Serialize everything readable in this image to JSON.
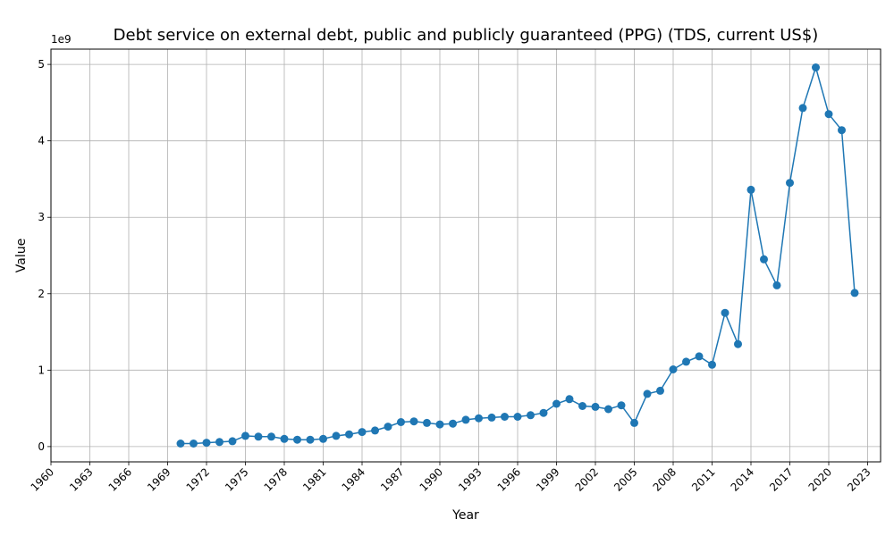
{
  "chart_data": {
    "type": "line",
    "title": "Debt service on external debt, public and publicly guaranteed (PPG) (TDS, current US$)",
    "xlabel": "Year",
    "ylabel": "Value",
    "y_scale_label": "1e9",
    "xlim": [
      1960,
      2024
    ],
    "ylim": [
      -200000000.0,
      5200000000.0
    ],
    "x_ticks": [
      1960,
      1963,
      1966,
      1969,
      1972,
      1975,
      1978,
      1981,
      1984,
      1987,
      1990,
      1993,
      1996,
      1999,
      2002,
      2005,
      2008,
      2011,
      2014,
      2017,
      2020,
      2023
    ],
    "y_ticks": [
      0,
      1000000000,
      2000000000,
      3000000000,
      4000000000,
      5000000000
    ],
    "y_tick_labels": [
      "0",
      "1",
      "2",
      "3",
      "4",
      "5"
    ],
    "grid": true,
    "color": "#1f77b4",
    "x": [
      1970,
      1971,
      1972,
      1973,
      1974,
      1975,
      1976,
      1977,
      1978,
      1979,
      1980,
      1981,
      1982,
      1983,
      1984,
      1985,
      1986,
      1987,
      1988,
      1989,
      1990,
      1991,
      1992,
      1993,
      1994,
      1995,
      1996,
      1997,
      1998,
      1999,
      2000,
      2001,
      2002,
      2003,
      2004,
      2005,
      2006,
      2007,
      2008,
      2009,
      2010,
      2011,
      2012,
      2013,
      2014,
      2015,
      2016,
      2017,
      2018,
      2019,
      2020,
      2021,
      2022
    ],
    "values": [
      40000000,
      40000000,
      50000000,
      60000000,
      70000000,
      140000000,
      130000000,
      130000000,
      100000000,
      90000000,
      90000000,
      100000000,
      140000000,
      160000000,
      190000000,
      210000000,
      260000000,
      320000000,
      330000000,
      310000000,
      290000000,
      300000000,
      350000000,
      370000000,
      380000000,
      390000000,
      390000000,
      410000000,
      440000000,
      560000000,
      620000000,
      530000000,
      520000000,
      490000000,
      540000000,
      310000000,
      690000000,
      730000000,
      1010000000,
      1110000000,
      1180000000,
      1070000000,
      1750000000,
      1340000000,
      3360000000,
      2450000000,
      2110000000,
      3450000000,
      4430000000,
      4960000000,
      4350000000,
      4140000000,
      2010000000
    ]
  }
}
